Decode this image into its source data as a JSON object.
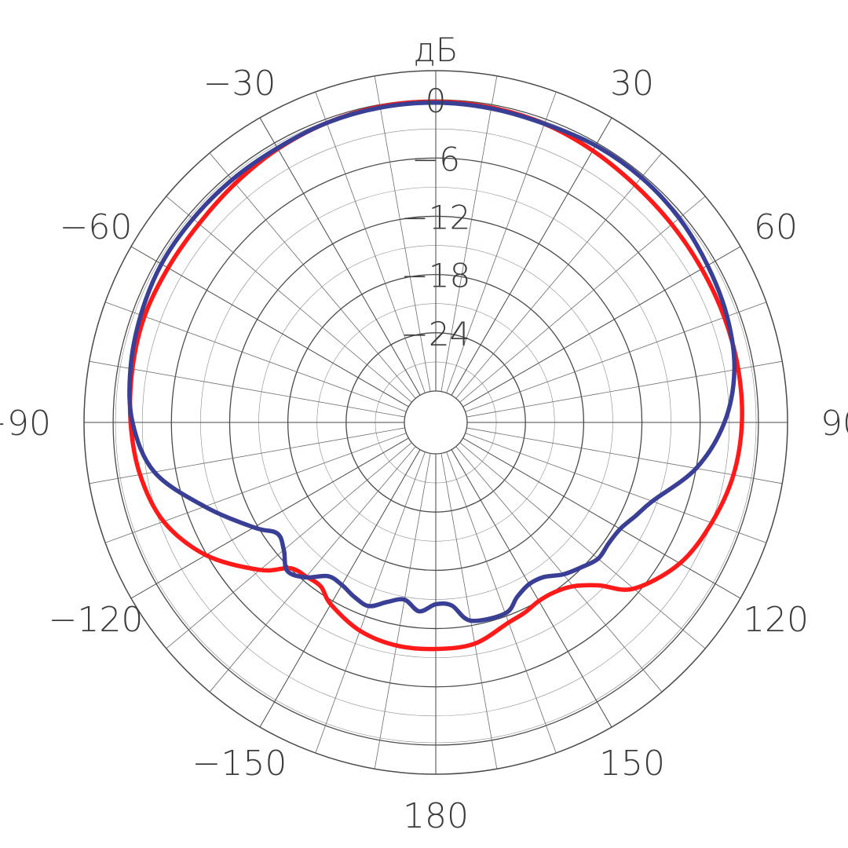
{
  "chart_data": {
    "type": "polar-line",
    "unit_label": "дБ",
    "angle_labels": [
      {
        "deg": 0,
        "text": ""
      },
      {
        "deg": 30,
        "text": "30"
      },
      {
        "deg": 60,
        "text": "60"
      },
      {
        "deg": 90,
        "text": "90"
      },
      {
        "deg": 120,
        "text": "120"
      },
      {
        "deg": 150,
        "text": "150"
      },
      {
        "deg": 180,
        "text": "180"
      },
      {
        "deg": -150,
        "text": "−150"
      },
      {
        "deg": -120,
        "text": "−120"
      },
      {
        "deg": -90,
        "text": "−90"
      },
      {
        "deg": -60,
        "text": "−60"
      },
      {
        "deg": -30,
        "text": "−30"
      }
    ],
    "radial_ticks": [
      "0",
      "−6",
      "−12",
      "−18",
      "−24"
    ],
    "radial_tick_values": [
      0,
      -6,
      -12,
      -18,
      -24
    ],
    "r_range_db": [
      -30,
      3
    ],
    "spoke_step_deg": 10,
    "grid": true,
    "series": [
      {
        "color": "#ff1a1a",
        "points": [
          [
            0,
            -0.2
          ],
          [
            10,
            -0.3
          ],
          [
            20,
            -0.5
          ],
          [
            30,
            -0.9
          ],
          [
            40,
            -1.3
          ],
          [
            50,
            -1.5
          ],
          [
            60,
            -1.6
          ],
          [
            70,
            -1.6
          ],
          [
            80,
            -1.6
          ],
          [
            90,
            -1.7
          ],
          [
            100,
            -2.1
          ],
          [
            110,
            -3.0
          ],
          [
            120,
            -4.2
          ],
          [
            130,
            -6.6
          ],
          [
            135,
            -9.5
          ],
          [
            140,
            -11.2
          ],
          [
            145,
            -11.9
          ],
          [
            150,
            -12.0
          ],
          [
            155,
            -11.6
          ],
          [
            160,
            -11.3
          ],
          [
            170,
            -10.1
          ],
          [
            180,
            -9.9
          ],
          [
            190,
            -9.9
          ],
          [
            200,
            -10.4
          ],
          [
            210,
            -11.6
          ],
          [
            215,
            -12.6
          ],
          [
            220,
            -12.5
          ],
          [
            225,
            -12.0
          ],
          [
            230,
            -9.6
          ],
          [
            240,
            -5.9
          ],
          [
            250,
            -3.4
          ],
          [
            260,
            -2.3
          ],
          [
            270,
            -1.8
          ],
          [
            280,
            -1.5
          ],
          [
            290,
            -1.3
          ],
          [
            300,
            -1.4
          ],
          [
            310,
            -1.4
          ],
          [
            320,
            -1.1
          ],
          [
            330,
            -0.7
          ],
          [
            340,
            -0.4
          ],
          [
            350,
            -0.2
          ],
          [
            360,
            -0.2
          ]
        ]
      },
      {
        "color": "#3a3f96",
        "points": [
          [
            0,
            -0.3
          ],
          [
            10,
            -0.4
          ],
          [
            20,
            -0.5
          ],
          [
            30,
            -0.3
          ],
          [
            40,
            -0.3
          ],
          [
            50,
            -0.5
          ],
          [
            60,
            -0.9
          ],
          [
            70,
            -1.3
          ],
          [
            80,
            -2.0
          ],
          [
            90,
            -3.5
          ],
          [
            100,
            -6.0
          ],
          [
            110,
            -9.5
          ],
          [
            115,
            -10.5
          ],
          [
            120,
            -11.3
          ],
          [
            125,
            -11.5
          ],
          [
            130,
            -11.4
          ],
          [
            135,
            -12.1
          ],
          [
            140,
            -12.8
          ],
          [
            145,
            -13.8
          ],
          [
            150,
            -14.0
          ],
          [
            155,
            -13.4
          ],
          [
            160,
            -12.3
          ],
          [
            170,
            -12.5
          ],
          [
            175,
            -14.3
          ],
          [
            180,
            -14.5
          ],
          [
            185,
            -13.7
          ],
          [
            190,
            -14.7
          ],
          [
            195,
            -14.1
          ],
          [
            200,
            -13.1
          ],
          [
            205,
            -13.4
          ],
          [
            210,
            -13.9
          ],
          [
            215,
            -13.9
          ],
          [
            220,
            -12.4
          ],
          [
            225,
            -11.6
          ],
          [
            230,
            -12.8
          ],
          [
            235,
            -13.3
          ],
          [
            240,
            -11.6
          ],
          [
            250,
            -7.9
          ],
          [
            260,
            -3.8
          ],
          [
            270,
            -2.0
          ],
          [
            280,
            -1.3
          ],
          [
            290,
            -0.9
          ],
          [
            300,
            -0.6
          ],
          [
            310,
            -0.6
          ],
          [
            320,
            -0.6
          ],
          [
            330,
            -0.6
          ],
          [
            340,
            -0.4
          ],
          [
            350,
            -0.3
          ],
          [
            360,
            -0.3
          ]
        ]
      }
    ]
  }
}
